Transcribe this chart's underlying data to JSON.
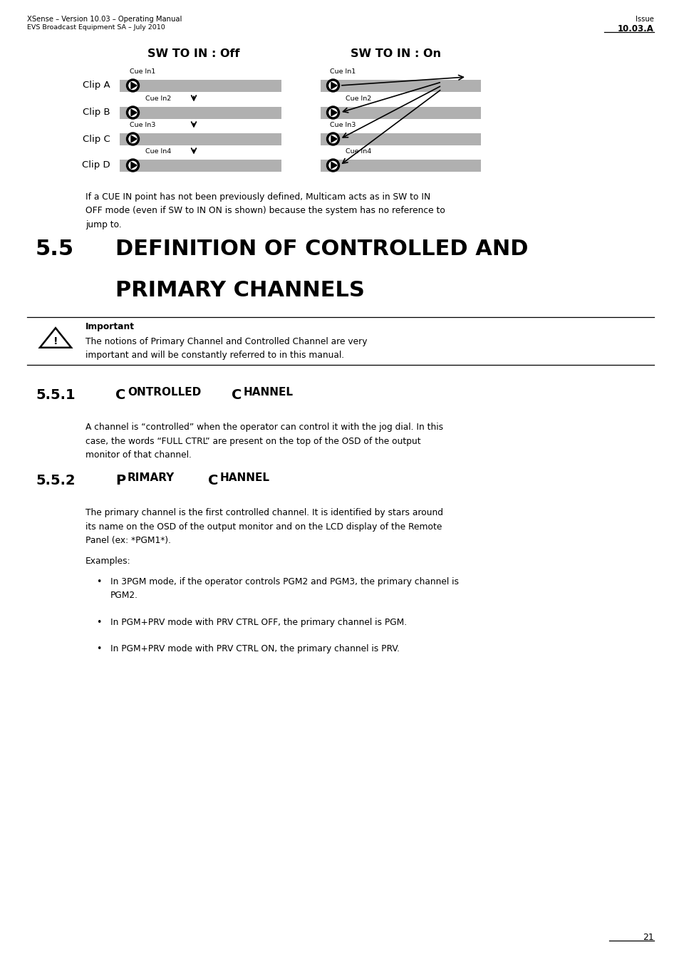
{
  "page_width": 9.54,
  "page_height": 13.5,
  "bg_color": "#ffffff",
  "header_left_line1": "XSense – Version 10.03 – Operating Manual",
  "header_left_line2": "EVS Broadcast Equipment SA – July 2010",
  "header_right_line1": "Issue",
  "header_right_line2": "10.03.A",
  "sw_off_label": "SW TO IN : Off",
  "sw_on_label": "SW TO IN : On",
  "clip_labels": [
    "Clip A",
    "Clip B",
    "Clip C",
    "Clip D"
  ],
  "cue_labels_left": [
    "Cue In1",
    "Cue In2",
    "Cue In3",
    "Cue In4"
  ],
  "cue_labels_right": [
    "Cue In1",
    "Cue In2",
    "Cue In3",
    "Cue In4"
  ],
  "paragraph_cue_lines": [
    "If a CUE IN point has not been previously defined, Multicam acts as in SW to IN",
    "OFF mode (even if SW to IN ON is shown) because the system has no reference to",
    "jump to."
  ],
  "section_number": "5.5",
  "section_title_line1": "DEFINITION OF CONTROLLED AND",
  "section_title_line2": "PRIMARY CHANNELS",
  "important_label": "Important",
  "important_text_lines": [
    "The notions of Primary Channel and Controlled Channel are very",
    "important and will be constantly referred to in this manual."
  ],
  "sub1_number": "5.5.1",
  "sub1_text_lines": [
    "A channel is “controlled” when the operator can control it with the jog dial. In this",
    "case, the words “FULL CTRL” are present on the top of the OSD of the output",
    "monitor of that channel."
  ],
  "sub2_number": "5.5.2",
  "sub2_text_intro_lines": [
    "The primary channel is the first controlled channel. It is identified by stars around",
    "its name on the OSD of the output monitor and on the LCD display of the Remote",
    "Panel (ex: *PGM1*)."
  ],
  "sub2_examples_label": "Examples:",
  "sub2_bullets": [
    [
      "In 3PGM mode, if the operator controls PGM2 and PGM3, the primary channel is",
      "PGM2."
    ],
    [
      "In PGM+PRV mode with PRV CTRL OFF, the primary channel is PGM."
    ],
    [
      "In PGM+PRV mode with PRV CTRL ON, the primary channel is PRV."
    ]
  ],
  "page_number": "21",
  "bar_color": "#b0b0b0"
}
